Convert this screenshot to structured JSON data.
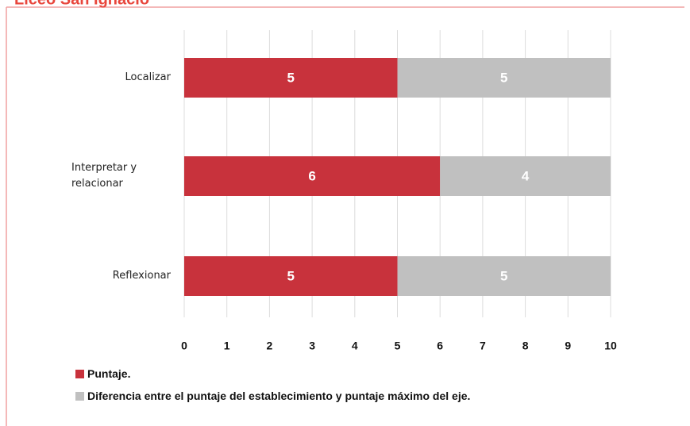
{
  "chart_data": {
    "type": "stacked-bar-horizontal",
    "title": "Liceo San Ignacio",
    "categories": [
      "Localizar",
      "Interpretar y relacionar",
      "Reflexionar"
    ],
    "series": [
      {
        "name": "Puntaje.",
        "color": "#c8323c",
        "values": [
          5,
          6,
          5
        ]
      },
      {
        "name": "Diferencia entre el puntaje del establecimiento y puntaje máximo del eje.",
        "color": "#c0c0c0",
        "values": [
          5,
          4,
          5
        ]
      }
    ],
    "xlim": [
      0,
      10
    ],
    "xticks": [
      0,
      1,
      2,
      3,
      4,
      5,
      6,
      7,
      8,
      9,
      10
    ],
    "grid": true
  }
}
